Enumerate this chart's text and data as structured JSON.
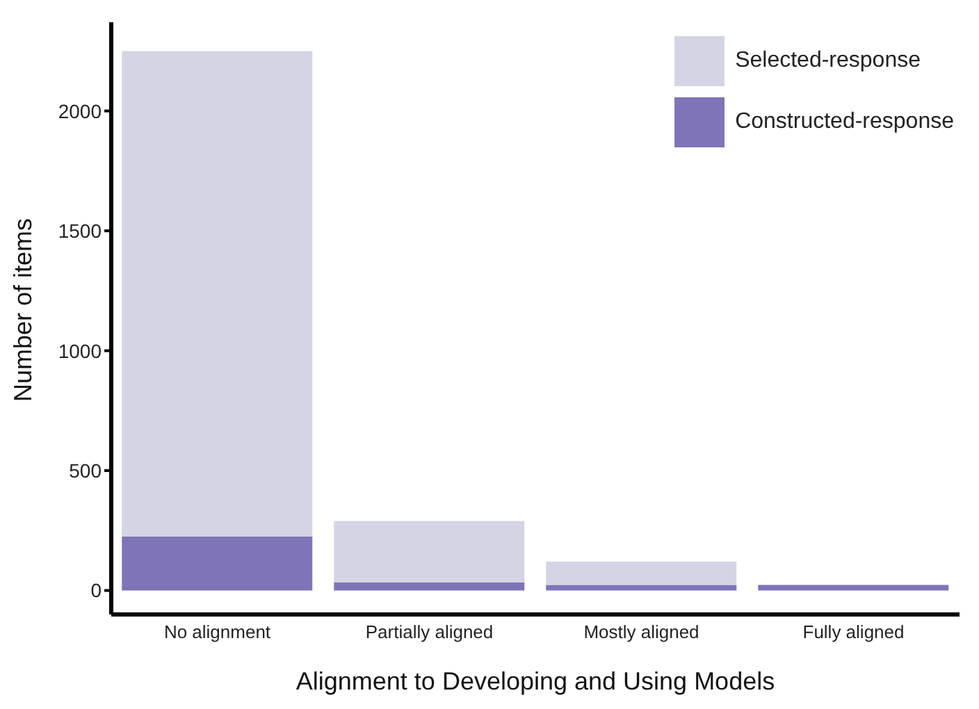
{
  "chart_data": {
    "type": "bar",
    "stacked": true,
    "xlabel": "Alignment to Developing and Using Models",
    "ylabel": "Number of items",
    "categories": [
      "No alignment",
      "Partially aligned",
      "Mostly aligned",
      "Fully aligned"
    ],
    "series": [
      {
        "name": "Constructed-response",
        "color": "#7f74b7",
        "values": [
          225,
          34,
          23,
          23
        ]
      },
      {
        "name": "Selected-response",
        "color": "#d4d4e5",
        "values": [
          2025,
          256,
          97,
          0
        ]
      }
    ],
    "ylim": [
      -100,
      2370
    ],
    "yticks": [
      0,
      500,
      1000,
      1500,
      2000
    ],
    "grid": false,
    "legend": "top right"
  }
}
